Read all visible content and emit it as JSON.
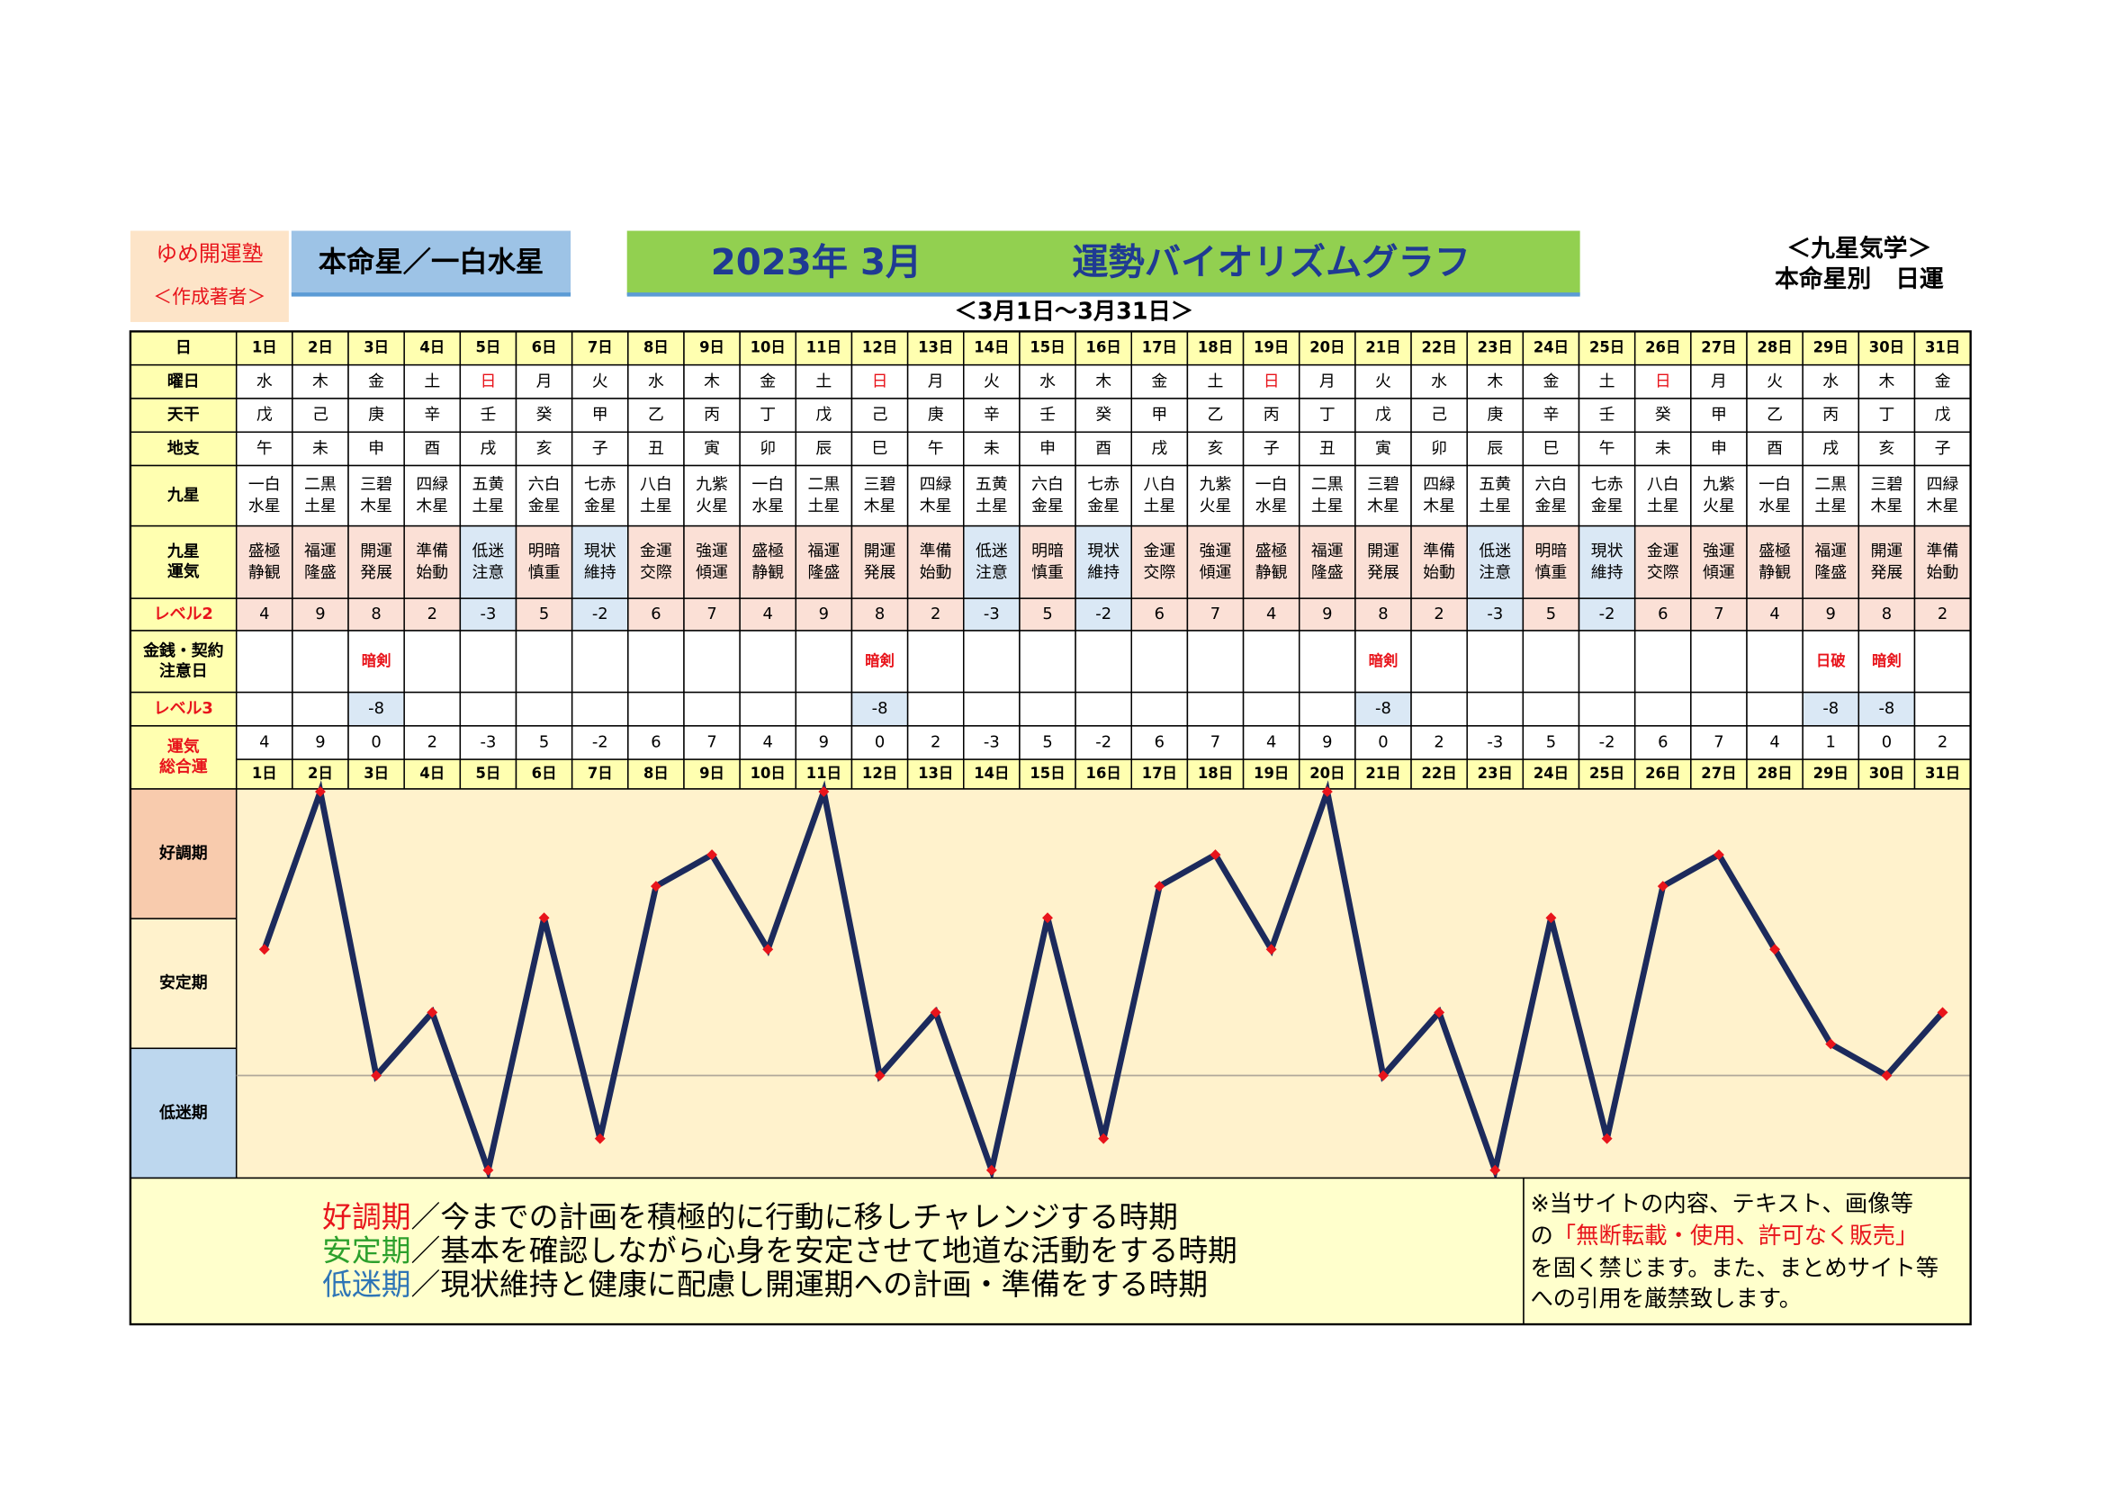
{
  "header": {
    "school": "ゆめ開運塾",
    "author": "＜作成著者＞",
    "honmei": "本命星／一白水星",
    "title_date": "2023年 3月",
    "title": "運勢バイオリズムグラフ",
    "period": "＜3月1日〜3月31日＞",
    "system": "＜九星気学＞",
    "kind": "本命星別　日運"
  },
  "table": {
    "row_labels": {
      "day": "日",
      "weekday": "曜日",
      "kan": "天干",
      "shi": "地支",
      "star": "九星",
      "fortune": [
        "九星",
        "運気"
      ],
      "level2": "レベル2",
      "notice": [
        "金銭・契約",
        "注意日"
      ],
      "level3": "レベル3",
      "total": [
        "運気",
        "総合運"
      ]
    },
    "weekdays": [
      "水",
      "木",
      "金",
      "土",
      "日",
      "月",
      "火",
      "水",
      "木",
      "金",
      "土",
      "日",
      "月",
      "火",
      "水",
      "木",
      "金",
      "土",
      "日",
      "月",
      "火",
      "水",
      "木",
      "金",
      "土",
      "日",
      "月",
      "火",
      "水",
      "木",
      "金"
    ],
    "kan": [
      "戊",
      "己",
      "庚",
      "辛",
      "壬",
      "癸",
      "甲",
      "乙",
      "丙",
      "丁",
      "戊",
      "己",
      "庚",
      "辛",
      "壬",
      "癸",
      "甲",
      "乙",
      "丙",
      "丁",
      "戊",
      "己",
      "庚",
      "辛",
      "壬",
      "癸",
      "甲",
      "乙",
      "丙",
      "丁",
      "戊"
    ],
    "shi": [
      "午",
      "未",
      "申",
      "酉",
      "戌",
      "亥",
      "子",
      "丑",
      "寅",
      "卯",
      "辰",
      "巳",
      "午",
      "未",
      "申",
      "酉",
      "戌",
      "亥",
      "子",
      "丑",
      "寅",
      "卯",
      "辰",
      "巳",
      "午",
      "未",
      "申",
      "酉",
      "戌",
      "亥",
      "子"
    ],
    "stars": [
      [
        "一白",
        "水星"
      ],
      [
        "二黒",
        "土星"
      ],
      [
        "三碧",
        "木星"
      ],
      [
        "四緑",
        "木星"
      ],
      [
        "五黄",
        "土星"
      ],
      [
        "六白",
        "金星"
      ],
      [
        "七赤",
        "金星"
      ],
      [
        "八白",
        "土星"
      ],
      [
        "九紫",
        "火星"
      ],
      [
        "一白",
        "水星"
      ],
      [
        "二黒",
        "土星"
      ],
      [
        "三碧",
        "木星"
      ],
      [
        "四緑",
        "木星"
      ],
      [
        "五黄",
        "土星"
      ],
      [
        "六白",
        "金星"
      ],
      [
        "七赤",
        "金星"
      ],
      [
        "八白",
        "土星"
      ],
      [
        "九紫",
        "火星"
      ],
      [
        "一白",
        "水星"
      ],
      [
        "二黒",
        "土星"
      ],
      [
        "三碧",
        "木星"
      ],
      [
        "四緑",
        "木星"
      ],
      [
        "五黄",
        "土星"
      ],
      [
        "六白",
        "金星"
      ],
      [
        "七赤",
        "金星"
      ],
      [
        "八白",
        "土星"
      ],
      [
        "九紫",
        "火星"
      ],
      [
        "一白",
        "水星"
      ],
      [
        "二黒",
        "土星"
      ],
      [
        "三碧",
        "木星"
      ],
      [
        "四緑",
        "木星"
      ]
    ],
    "fortunes": [
      [
        "盛極",
        "静観"
      ],
      [
        "福運",
        "隆盛"
      ],
      [
        "開運",
        "発展"
      ],
      [
        "準備",
        "始動"
      ],
      [
        "低迷",
        "注意"
      ],
      [
        "明暗",
        "慎重"
      ],
      [
        "現状",
        "維持"
      ],
      [
        "金運",
        "交際"
      ],
      [
        "強運",
        "傾運"
      ],
      [
        "盛極",
        "静観"
      ],
      [
        "福運",
        "隆盛"
      ],
      [
        "開運",
        "発展"
      ],
      [
        "準備",
        "始動"
      ],
      [
        "低迷",
        "注意"
      ],
      [
        "明暗",
        "慎重"
      ],
      [
        "現状",
        "維持"
      ],
      [
        "金運",
        "交際"
      ],
      [
        "強運",
        "傾運"
      ],
      [
        "盛極",
        "静観"
      ],
      [
        "福運",
        "隆盛"
      ],
      [
        "開運",
        "発展"
      ],
      [
        "準備",
        "始動"
      ],
      [
        "低迷",
        "注意"
      ],
      [
        "明暗",
        "慎重"
      ],
      [
        "現状",
        "維持"
      ],
      [
        "金運",
        "交際"
      ],
      [
        "強運",
        "傾運"
      ],
      [
        "盛極",
        "静観"
      ],
      [
        "福運",
        "隆盛"
      ],
      [
        "開運",
        "発展"
      ],
      [
        "準備",
        "始動"
      ]
    ],
    "level2": [
      4,
      9,
      8,
      2,
      -3,
      5,
      -2,
      6,
      7,
      4,
      9,
      8,
      2,
      -3,
      5,
      -2,
      6,
      7,
      4,
      9,
      8,
      2,
      -3,
      5,
      -2,
      6,
      7,
      4,
      9,
      8,
      2
    ],
    "notices": [
      null,
      null,
      "暗剣",
      null,
      null,
      null,
      null,
      null,
      null,
      null,
      null,
      "暗剣",
      null,
      null,
      null,
      null,
      null,
      null,
      null,
      null,
      "暗剣",
      null,
      null,
      null,
      null,
      null,
      null,
      null,
      "日破",
      "暗剣",
      null
    ],
    "level3": [
      null,
      null,
      -8,
      null,
      null,
      null,
      null,
      null,
      null,
      null,
      null,
      -8,
      null,
      null,
      null,
      null,
      null,
      null,
      null,
      null,
      -8,
      null,
      null,
      null,
      null,
      null,
      null,
      null,
      -8,
      -8,
      null
    ]
  },
  "chart_data": {
    "type": "line",
    "categories": [
      "1日",
      "2日",
      "3日",
      "4日",
      "5日",
      "6日",
      "7日",
      "8日",
      "9日",
      "10日",
      "11日",
      "12日",
      "13日",
      "14日",
      "15日",
      "16日",
      "17日",
      "18日",
      "19日",
      "20日",
      "21日",
      "22日",
      "23日",
      "24日",
      "25日",
      "26日",
      "27日",
      "28日",
      "29日",
      "30日",
      "31日"
    ],
    "values": [
      4,
      9,
      0,
      2,
      -3,
      5,
      -2,
      6,
      7,
      4,
      9,
      0,
      2,
      -3,
      5,
      -2,
      6,
      7,
      4,
      9,
      0,
      2,
      -3,
      5,
      -2,
      6,
      7,
      4,
      1,
      0,
      2
    ],
    "color": "#1c2a5c",
    "marker_color": "#e8141b",
    "ylim": [
      -3.25,
      9
    ],
    "reference_line": 0,
    "band_labels": [
      "好調期",
      "安定期",
      "低迷期"
    ],
    "band_colors": [
      "#f8cbad",
      "#fff2cc",
      "#bdd7ee"
    ]
  },
  "legend": [
    {
      "term": "好調期",
      "color": "#e8141b",
      "text": "／今までの計画を積極的に行動に移しチャレンジする時期"
    },
    {
      "term": "安定期",
      "color": "#2ca02c",
      "text": "／基本を確認しながら心身を安定させて地道な活動をする時期"
    },
    {
      "term": "低迷期",
      "color": "#2e75b6",
      "text": "／現状維持と健康に配慮し開運期への計画・準備をする時期"
    }
  ],
  "notice": {
    "line1": "※当サイトの内容、テキスト、画像等",
    "line2_pre": "の",
    "line2_red": "「無断転載・使用、許可なく販売」",
    "line3": "を固く禁じます。また、まとめサイト等",
    "line4": "への引用を厳禁致します。"
  }
}
